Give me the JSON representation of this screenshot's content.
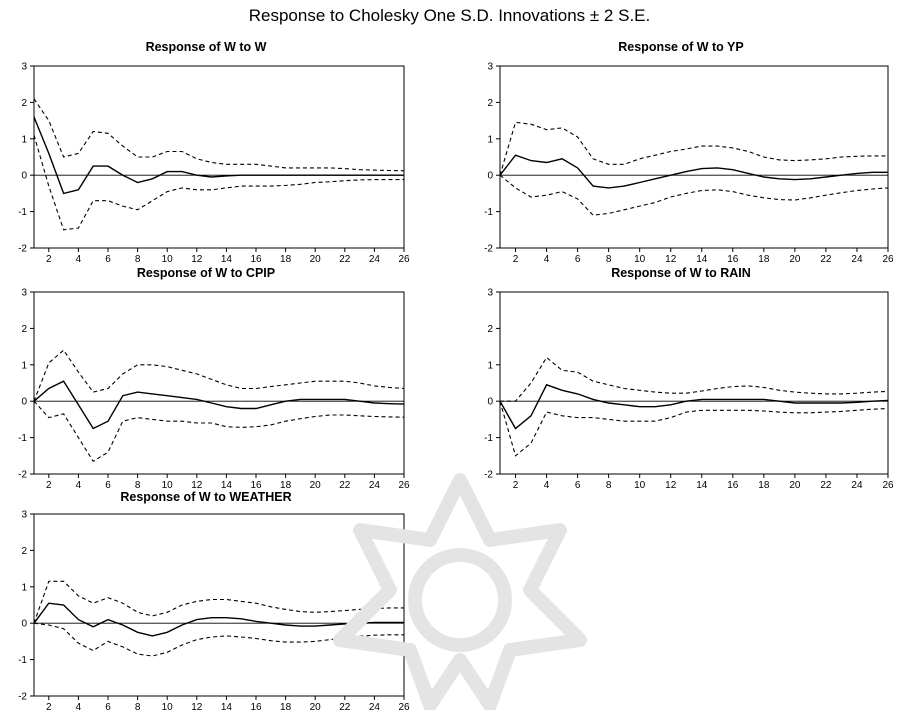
{
  "title": "Response to Cholesky One S.D. Innovations ± 2 S.E.",
  "chart_data": [
    {
      "type": "line",
      "title": "Response of W to W",
      "x": [
        1,
        2,
        3,
        4,
        5,
        6,
        7,
        8,
        9,
        10,
        11,
        12,
        13,
        14,
        15,
        16,
        17,
        18,
        19,
        20,
        21,
        22,
        23,
        24,
        25,
        26
      ],
      "xticks": [
        2,
        4,
        6,
        8,
        10,
        12,
        14,
        16,
        18,
        20,
        22,
        24,
        26
      ],
      "ylim": [
        -2,
        3
      ],
      "yticks": [
        -2,
        -1,
        0,
        1,
        2,
        3
      ],
      "series": [
        {
          "style": "solid",
          "values": [
            1.6,
            0.6,
            -0.5,
            -0.4,
            0.25,
            0.25,
            0.0,
            -0.2,
            -0.1,
            0.1,
            0.1,
            0.0,
            -0.05,
            -0.02,
            0.0,
            0.0,
            0.0,
            0.0,
            0.0,
            0.0,
            0.0,
            0.0,
            0.0,
            0.0,
            0.0,
            0.0
          ]
        },
        {
          "style": "dashed",
          "values": [
            2.1,
            1.5,
            0.5,
            0.6,
            1.2,
            1.15,
            0.8,
            0.5,
            0.5,
            0.65,
            0.65,
            0.45,
            0.35,
            0.3,
            0.3,
            0.3,
            0.25,
            0.2,
            0.2,
            0.2,
            0.2,
            0.18,
            0.15,
            0.14,
            0.13,
            0.12
          ]
        },
        {
          "style": "dashed",
          "values": [
            1.1,
            -0.3,
            -1.5,
            -1.45,
            -0.7,
            -0.7,
            -0.85,
            -0.95,
            -0.7,
            -0.45,
            -0.35,
            -0.4,
            -0.4,
            -0.35,
            -0.3,
            -0.3,
            -0.3,
            -0.28,
            -0.25,
            -0.2,
            -0.18,
            -0.15,
            -0.13,
            -0.12,
            -0.12,
            -0.12
          ]
        }
      ]
    },
    {
      "type": "line",
      "title": "Response of W to YP",
      "x": [
        1,
        2,
        3,
        4,
        5,
        6,
        7,
        8,
        9,
        10,
        11,
        12,
        13,
        14,
        15,
        16,
        17,
        18,
        19,
        20,
        21,
        22,
        23,
        24,
        25,
        26
      ],
      "xticks": [
        2,
        4,
        6,
        8,
        10,
        12,
        14,
        16,
        18,
        20,
        22,
        24,
        26
      ],
      "ylim": [
        -2,
        3
      ],
      "yticks": [
        -2,
        -1,
        0,
        1,
        2,
        3
      ],
      "series": [
        {
          "style": "solid",
          "values": [
            0.0,
            0.55,
            0.4,
            0.35,
            0.45,
            0.2,
            -0.3,
            -0.35,
            -0.3,
            -0.2,
            -0.1,
            0.0,
            0.1,
            0.18,
            0.2,
            0.15,
            0.05,
            -0.05,
            -0.1,
            -0.12,
            -0.1,
            -0.05,
            0.0,
            0.05,
            0.08,
            0.08
          ]
        },
        {
          "style": "dashed",
          "values": [
            0.0,
            1.45,
            1.4,
            1.25,
            1.3,
            1.05,
            0.45,
            0.3,
            0.3,
            0.45,
            0.55,
            0.65,
            0.72,
            0.8,
            0.8,
            0.75,
            0.65,
            0.5,
            0.42,
            0.4,
            0.42,
            0.45,
            0.5,
            0.52,
            0.53,
            0.53
          ]
        },
        {
          "style": "dashed",
          "values": [
            0.0,
            -0.35,
            -0.6,
            -0.55,
            -0.45,
            -0.65,
            -1.1,
            -1.05,
            -0.95,
            -0.85,
            -0.75,
            -0.6,
            -0.5,
            -0.42,
            -0.4,
            -0.45,
            -0.55,
            -0.62,
            -0.67,
            -0.68,
            -0.62,
            -0.55,
            -0.48,
            -0.42,
            -0.38,
            -0.35
          ]
        }
      ]
    },
    {
      "type": "line",
      "title": "Response of W to CPIP",
      "x": [
        1,
        2,
        3,
        4,
        5,
        6,
        7,
        8,
        9,
        10,
        11,
        12,
        13,
        14,
        15,
        16,
        17,
        18,
        19,
        20,
        21,
        22,
        23,
        24,
        25,
        26
      ],
      "xticks": [
        2,
        4,
        6,
        8,
        10,
        12,
        14,
        16,
        18,
        20,
        22,
        24,
        26
      ],
      "ylim": [
        -2,
        3
      ],
      "yticks": [
        -2,
        -1,
        0,
        1,
        2,
        3
      ],
      "series": [
        {
          "style": "solid",
          "values": [
            0.0,
            0.35,
            0.55,
            -0.1,
            -0.75,
            -0.55,
            0.15,
            0.25,
            0.2,
            0.15,
            0.1,
            0.05,
            -0.05,
            -0.15,
            -0.2,
            -0.2,
            -0.1,
            0.0,
            0.05,
            0.05,
            0.05,
            0.05,
            0.0,
            -0.05,
            -0.07,
            -0.08
          ]
        },
        {
          "style": "dashed",
          "values": [
            0.0,
            1.05,
            1.4,
            0.8,
            0.25,
            0.35,
            0.75,
            1.0,
            1.0,
            0.95,
            0.85,
            0.75,
            0.6,
            0.45,
            0.35,
            0.35,
            0.4,
            0.45,
            0.5,
            0.55,
            0.55,
            0.55,
            0.5,
            0.42,
            0.38,
            0.35
          ]
        },
        {
          "style": "dashed",
          "values": [
            0.0,
            -0.45,
            -0.35,
            -1.0,
            -1.65,
            -1.4,
            -0.55,
            -0.45,
            -0.5,
            -0.55,
            -0.55,
            -0.6,
            -0.6,
            -0.7,
            -0.72,
            -0.7,
            -0.65,
            -0.55,
            -0.48,
            -0.42,
            -0.38,
            -0.38,
            -0.4,
            -0.42,
            -0.43,
            -0.44
          ]
        }
      ]
    },
    {
      "type": "line",
      "title": "Response of W to RAIN",
      "x": [
        1,
        2,
        3,
        4,
        5,
        6,
        7,
        8,
        9,
        10,
        11,
        12,
        13,
        14,
        15,
        16,
        17,
        18,
        19,
        20,
        21,
        22,
        23,
        24,
        25,
        26
      ],
      "xticks": [
        2,
        4,
        6,
        8,
        10,
        12,
        14,
        16,
        18,
        20,
        22,
        24,
        26
      ],
      "ylim": [
        -2,
        3
      ],
      "yticks": [
        -2,
        -1,
        0,
        1,
        2,
        3
      ],
      "series": [
        {
          "style": "solid",
          "values": [
            0.0,
            -0.75,
            -0.4,
            0.45,
            0.3,
            0.2,
            0.05,
            -0.05,
            -0.1,
            -0.15,
            -0.15,
            -0.1,
            0.0,
            0.05,
            0.05,
            0.05,
            0.05,
            0.05,
            0.0,
            -0.05,
            -0.05,
            -0.05,
            -0.05,
            -0.03,
            0.0,
            0.02
          ]
        },
        {
          "style": "dashed",
          "values": [
            0.0,
            0.0,
            0.5,
            1.2,
            0.85,
            0.8,
            0.55,
            0.45,
            0.35,
            0.3,
            0.25,
            0.22,
            0.22,
            0.28,
            0.35,
            0.4,
            0.42,
            0.38,
            0.3,
            0.25,
            0.22,
            0.2,
            0.2,
            0.22,
            0.25,
            0.27
          ]
        },
        {
          "style": "dashed",
          "values": [
            0.0,
            -1.5,
            -1.15,
            -0.3,
            -0.4,
            -0.45,
            -0.45,
            -0.5,
            -0.55,
            -0.55,
            -0.55,
            -0.45,
            -0.3,
            -0.25,
            -0.25,
            -0.25,
            -0.25,
            -0.27,
            -0.3,
            -0.32,
            -0.32,
            -0.3,
            -0.28,
            -0.25,
            -0.22,
            -0.2
          ]
        }
      ]
    },
    {
      "type": "line",
      "title": "Response of W to WEATHER",
      "x": [
        1,
        2,
        3,
        4,
        5,
        6,
        7,
        8,
        9,
        10,
        11,
        12,
        13,
        14,
        15,
        16,
        17,
        18,
        19,
        20,
        21,
        22,
        23,
        24,
        25,
        26
      ],
      "xticks": [
        2,
        4,
        6,
        8,
        10,
        12,
        14,
        16,
        18,
        20,
        22,
        24,
        26
      ],
      "ylim": [
        -2,
        3
      ],
      "yticks": [
        -2,
        -1,
        0,
        1,
        2,
        3
      ],
      "series": [
        {
          "style": "solid",
          "values": [
            0.0,
            0.55,
            0.5,
            0.1,
            -0.1,
            0.1,
            -0.05,
            -0.25,
            -0.35,
            -0.25,
            -0.05,
            0.1,
            0.15,
            0.15,
            0.12,
            0.05,
            0.0,
            -0.05,
            -0.08,
            -0.08,
            -0.05,
            -0.02,
            0.0,
            0.02,
            0.02,
            0.02
          ]
        },
        {
          "style": "dashed",
          "values": [
            0.0,
            1.15,
            1.15,
            0.75,
            0.55,
            0.7,
            0.55,
            0.3,
            0.2,
            0.3,
            0.5,
            0.6,
            0.65,
            0.65,
            0.6,
            0.55,
            0.45,
            0.38,
            0.32,
            0.3,
            0.32,
            0.35,
            0.38,
            0.4,
            0.42,
            0.42
          ]
        },
        {
          "style": "dashed",
          "values": [
            0.0,
            -0.05,
            -0.15,
            -0.55,
            -0.75,
            -0.5,
            -0.65,
            -0.85,
            -0.9,
            -0.8,
            -0.6,
            -0.45,
            -0.38,
            -0.35,
            -0.38,
            -0.42,
            -0.48,
            -0.52,
            -0.52,
            -0.5,
            -0.45,
            -0.4,
            -0.36,
            -0.33,
            -0.32,
            -0.32
          ]
        }
      ]
    }
  ]
}
